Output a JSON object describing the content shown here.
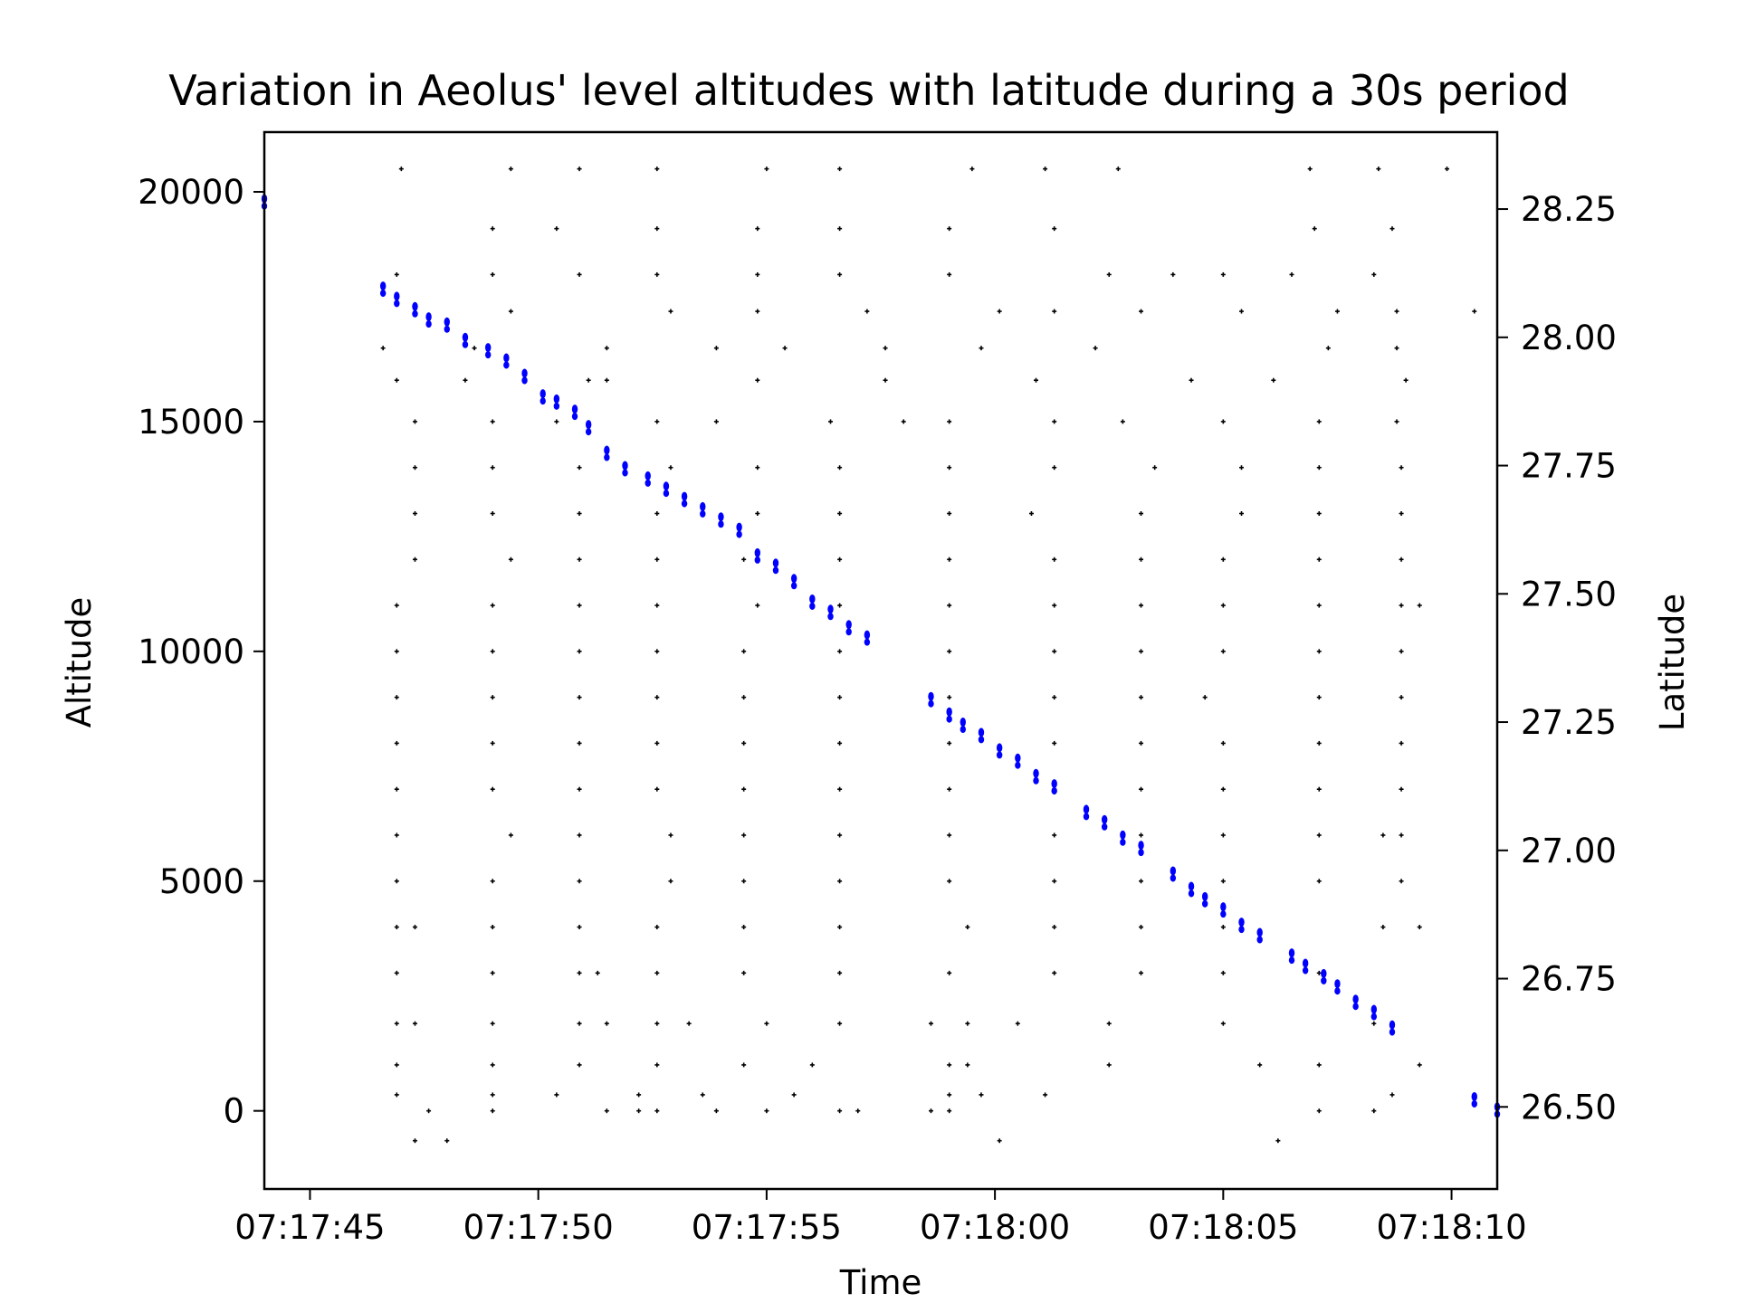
{
  "chart_data": {
    "type": "scatter",
    "title": "Variation in Aeolus' level altitudes with latitude during a 30s period",
    "xlabel": "Time",
    "ylabel": "Altitude",
    "y2label": "Latitude",
    "x_tick_labels": [
      "07:17:45",
      "07:17:50",
      "07:17:55",
      "07:18:00",
      "07:18:05",
      "07:18:10"
    ],
    "x_tick_seconds": [
      0,
      5,
      10,
      15,
      20,
      25
    ],
    "x_range_seconds": [
      -1.0,
      26.0
    ],
    "y_ticks": [
      0,
      5000,
      10000,
      15000,
      20000
    ],
    "ylim": [
      -1700,
      21300
    ],
    "y2_ticks": [
      26.5,
      26.75,
      27.0,
      27.25,
      27.5,
      27.75,
      28.0,
      28.25
    ],
    "y2_tick_labels": [
      "26.50",
      "26.75",
      "27.00",
      "27.25",
      "27.50",
      "27.75",
      "28.00",
      "28.25"
    ],
    "y2lim": [
      26.34,
      28.4
    ],
    "series": [
      {
        "color": "#0000ff",
        "axis": "latitude",
        "x_seconds": [
          -1.0,
          1.6,
          1.9,
          2.3,
          2.6,
          3.0,
          3.4,
          3.9,
          4.3,
          4.7,
          5.1,
          5.4,
          5.8,
          6.1,
          6.5,
          6.9,
          7.4,
          7.8,
          8.2,
          8.6,
          9.0,
          9.4,
          9.8,
          10.2,
          10.6,
          11.0,
          11.4,
          11.8,
          12.2,
          13.6,
          14.0,
          14.3,
          14.7,
          15.1,
          15.5,
          15.9,
          16.3,
          17.0,
          17.4,
          17.8,
          18.2,
          18.9,
          19.3,
          19.6,
          20.0,
          20.4,
          20.8,
          21.5,
          21.8,
          22.2,
          22.5,
          22.9,
          23.3,
          23.7,
          25.5,
          26.0
        ],
        "y_latitude": [
          28.27,
          28.1,
          28.08,
          28.06,
          28.04,
          28.03,
          28.0,
          27.98,
          27.96,
          27.93,
          27.89,
          27.88,
          27.86,
          27.83,
          27.78,
          27.75,
          27.73,
          27.71,
          27.69,
          27.67,
          27.65,
          27.63,
          27.58,
          27.56,
          27.53,
          27.49,
          27.47,
          27.44,
          27.42,
          27.3,
          27.27,
          27.25,
          27.23,
          27.2,
          27.18,
          27.15,
          27.13,
          27.08,
          27.06,
          27.03,
          27.01,
          26.96,
          26.93,
          26.91,
          26.89,
          26.86,
          26.84,
          26.8,
          26.78,
          26.76,
          26.74,
          26.71,
          26.69,
          26.66,
          26.52,
          26.5
        ]
      },
      {
        "color": "#000000",
        "axis": "altitude",
        "note_style": "small crosses",
        "points": [
          [
            2.0,
            20500
          ],
          [
            4.4,
            20500
          ],
          [
            5.9,
            20500
          ],
          [
            7.6,
            20500
          ],
          [
            10.0,
            20500
          ],
          [
            11.6,
            20500
          ],
          [
            14.5,
            20500
          ],
          [
            16.1,
            20500
          ],
          [
            21.9,
            20500
          ],
          [
            23.4,
            20500
          ],
          [
            24.9,
            20500
          ],
          [
            17.7,
            20500
          ],
          [
            4.0,
            19200
          ],
          [
            5.4,
            19200
          ],
          [
            7.6,
            19200
          ],
          [
            9.8,
            19200
          ],
          [
            11.6,
            19200
          ],
          [
            14.0,
            19200
          ],
          [
            16.3,
            19200
          ],
          [
            22.0,
            19200
          ],
          [
            23.7,
            19200
          ],
          [
            1.9,
            18200
          ],
          [
            4.0,
            18200
          ],
          [
            5.9,
            18200
          ],
          [
            7.6,
            18200
          ],
          [
            9.8,
            18200
          ],
          [
            11.6,
            18200
          ],
          [
            14.0,
            18200
          ],
          [
            17.5,
            18200
          ],
          [
            18.9,
            18200
          ],
          [
            20.0,
            18200
          ],
          [
            21.5,
            18200
          ],
          [
            23.3,
            18200
          ],
          [
            4.4,
            17400
          ],
          [
            7.9,
            17400
          ],
          [
            9.8,
            17400
          ],
          [
            12.2,
            17400
          ],
          [
            15.1,
            17400
          ],
          [
            16.3,
            17400
          ],
          [
            18.2,
            17400
          ],
          [
            20.4,
            17400
          ],
          [
            22.5,
            17400
          ],
          [
            23.8,
            17400
          ],
          [
            25.5,
            17400
          ],
          [
            1.6,
            16600
          ],
          [
            3.6,
            16600
          ],
          [
            6.5,
            16600
          ],
          [
            8.9,
            16600
          ],
          [
            10.4,
            16600
          ],
          [
            12.6,
            16600
          ],
          [
            14.7,
            16600
          ],
          [
            17.2,
            16600
          ],
          [
            22.3,
            16600
          ],
          [
            23.8,
            16600
          ],
          [
            1.9,
            15900
          ],
          [
            3.4,
            15900
          ],
          [
            6.1,
            15900
          ],
          [
            6.5,
            15900
          ],
          [
            9.8,
            15900
          ],
          [
            12.6,
            15900
          ],
          [
            15.9,
            15900
          ],
          [
            19.3,
            15900
          ],
          [
            21.1,
            15900
          ],
          [
            24.0,
            15900
          ],
          [
            2.3,
            15000
          ],
          [
            4.0,
            15000
          ],
          [
            5.4,
            15000
          ],
          [
            7.6,
            15000
          ],
          [
            8.9,
            15000
          ],
          [
            11.4,
            15000
          ],
          [
            13.0,
            15000
          ],
          [
            14.0,
            15000
          ],
          [
            16.3,
            15000
          ],
          [
            17.8,
            15000
          ],
          [
            20.0,
            15000
          ],
          [
            22.1,
            15000
          ],
          [
            23.8,
            15000
          ],
          [
            2.3,
            14000
          ],
          [
            4.0,
            14000
          ],
          [
            5.9,
            14000
          ],
          [
            7.9,
            14000
          ],
          [
            9.8,
            14000
          ],
          [
            11.6,
            14000
          ],
          [
            14.0,
            14000
          ],
          [
            16.3,
            14000
          ],
          [
            18.5,
            14000
          ],
          [
            20.4,
            14000
          ],
          [
            22.1,
            14000
          ],
          [
            23.9,
            14000
          ],
          [
            2.3,
            13000
          ],
          [
            4.0,
            13000
          ],
          [
            5.9,
            13000
          ],
          [
            7.6,
            13000
          ],
          [
            9.8,
            13000
          ],
          [
            11.6,
            13000
          ],
          [
            14.0,
            13000
          ],
          [
            15.8,
            13000
          ],
          [
            18.2,
            13000
          ],
          [
            20.4,
            13000
          ],
          [
            22.1,
            13000
          ],
          [
            23.9,
            13000
          ],
          [
            2.3,
            12000
          ],
          [
            4.4,
            12000
          ],
          [
            5.9,
            12000
          ],
          [
            7.6,
            12000
          ],
          [
            9.5,
            12000
          ],
          [
            11.6,
            12000
          ],
          [
            14.0,
            12000
          ],
          [
            16.3,
            12000
          ],
          [
            18.2,
            12000
          ],
          [
            20.0,
            12000
          ],
          [
            22.1,
            12000
          ],
          [
            23.9,
            12000
          ],
          [
            1.9,
            11000
          ],
          [
            4.0,
            11000
          ],
          [
            5.9,
            11000
          ],
          [
            7.6,
            11000
          ],
          [
            9.8,
            11000
          ],
          [
            11.6,
            11000
          ],
          [
            14.0,
            11000
          ],
          [
            16.3,
            11000
          ],
          [
            18.2,
            11000
          ],
          [
            20.0,
            11000
          ],
          [
            22.1,
            11000
          ],
          [
            23.9,
            11000
          ],
          [
            24.3,
            11000
          ],
          [
            1.9,
            10000
          ],
          [
            4.0,
            10000
          ],
          [
            5.9,
            10000
          ],
          [
            7.6,
            10000
          ],
          [
            9.5,
            10000
          ],
          [
            11.6,
            10000
          ],
          [
            14.0,
            10000
          ],
          [
            16.3,
            10000
          ],
          [
            18.2,
            10000
          ],
          [
            20.0,
            10000
          ],
          [
            22.1,
            10000
          ],
          [
            23.9,
            10000
          ],
          [
            1.9,
            9000
          ],
          [
            4.0,
            9000
          ],
          [
            5.9,
            9000
          ],
          [
            7.6,
            9000
          ],
          [
            9.5,
            9000
          ],
          [
            11.6,
            9000
          ],
          [
            14.0,
            9000
          ],
          [
            16.3,
            9000
          ],
          [
            18.2,
            9000
          ],
          [
            19.6,
            9000
          ],
          [
            22.1,
            9000
          ],
          [
            23.9,
            9000
          ],
          [
            1.9,
            8000
          ],
          [
            4.0,
            8000
          ],
          [
            5.9,
            8000
          ],
          [
            7.6,
            8000
          ],
          [
            9.5,
            8000
          ],
          [
            11.6,
            8000
          ],
          [
            14.0,
            8000
          ],
          [
            16.3,
            8000
          ],
          [
            18.2,
            8000
          ],
          [
            20.0,
            8000
          ],
          [
            22.1,
            8000
          ],
          [
            23.9,
            8000
          ],
          [
            1.9,
            7000
          ],
          [
            4.0,
            7000
          ],
          [
            5.9,
            7000
          ],
          [
            7.6,
            7000
          ],
          [
            9.5,
            7000
          ],
          [
            11.6,
            7000
          ],
          [
            14.0,
            7000
          ],
          [
            16.3,
            7000
          ],
          [
            18.2,
            7000
          ],
          [
            20.0,
            7000
          ],
          [
            22.1,
            7000
          ],
          [
            23.9,
            7000
          ],
          [
            1.9,
            6000
          ],
          [
            4.4,
            6000
          ],
          [
            5.9,
            6000
          ],
          [
            7.9,
            6000
          ],
          [
            9.5,
            6000
          ],
          [
            11.6,
            6000
          ],
          [
            14.0,
            6000
          ],
          [
            16.3,
            6000
          ],
          [
            18.2,
            6000
          ],
          [
            20.0,
            6000
          ],
          [
            22.1,
            6000
          ],
          [
            23.5,
            6000
          ],
          [
            23.9,
            6000
          ],
          [
            1.9,
            5000
          ],
          [
            4.0,
            5000
          ],
          [
            5.9,
            5000
          ],
          [
            7.9,
            5000
          ],
          [
            9.5,
            5000
          ],
          [
            11.6,
            5000
          ],
          [
            14.0,
            5000
          ],
          [
            16.3,
            5000
          ],
          [
            18.2,
            5000
          ],
          [
            20.0,
            5000
          ],
          [
            22.1,
            5000
          ],
          [
            23.9,
            5000
          ],
          [
            1.9,
            4000
          ],
          [
            2.3,
            4000
          ],
          [
            4.0,
            4000
          ],
          [
            5.9,
            4000
          ],
          [
            7.6,
            4000
          ],
          [
            9.5,
            4000
          ],
          [
            11.6,
            4000
          ],
          [
            14.4,
            4000
          ],
          [
            16.3,
            4000
          ],
          [
            18.2,
            4000
          ],
          [
            20.0,
            4000
          ],
          [
            23.5,
            4000
          ],
          [
            24.3,
            4000
          ],
          [
            1.9,
            3000
          ],
          [
            4.0,
            3000
          ],
          [
            5.9,
            3000
          ],
          [
            6.3,
            3000
          ],
          [
            7.6,
            3000
          ],
          [
            9.5,
            3000
          ],
          [
            11.6,
            3000
          ],
          [
            14.0,
            3000
          ],
          [
            16.3,
            3000
          ],
          [
            18.2,
            3000
          ],
          [
            20.0,
            3000
          ],
          [
            22.1,
            3000
          ],
          [
            1.9,
            1900
          ],
          [
            2.3,
            1900
          ],
          [
            4.0,
            1900
          ],
          [
            5.9,
            1900
          ],
          [
            6.5,
            1900
          ],
          [
            7.6,
            1900
          ],
          [
            8.3,
            1900
          ],
          [
            10.0,
            1900
          ],
          [
            11.6,
            1900
          ],
          [
            13.6,
            1900
          ],
          [
            14.4,
            1900
          ],
          [
            15.5,
            1900
          ],
          [
            17.5,
            1900
          ],
          [
            20.0,
            1900
          ],
          [
            23.3,
            1900
          ],
          [
            1.9,
            1000
          ],
          [
            4.0,
            1000
          ],
          [
            5.9,
            1000
          ],
          [
            7.6,
            1000
          ],
          [
            9.5,
            1000
          ],
          [
            11.0,
            1000
          ],
          [
            14.0,
            1000
          ],
          [
            14.4,
            1000
          ],
          [
            17.5,
            1000
          ],
          [
            20.8,
            1000
          ],
          [
            22.1,
            1000
          ],
          [
            24.3,
            1000
          ],
          [
            1.9,
            350
          ],
          [
            4.0,
            350
          ],
          [
            5.4,
            350
          ],
          [
            7.2,
            350
          ],
          [
            8.6,
            350
          ],
          [
            10.6,
            350
          ],
          [
            14.0,
            350
          ],
          [
            14.7,
            350
          ],
          [
            16.1,
            350
          ],
          [
            23.7,
            350
          ],
          [
            2.6,
            0
          ],
          [
            4.0,
            0
          ],
          [
            6.5,
            0
          ],
          [
            7.2,
            0
          ],
          [
            7.6,
            0
          ],
          [
            8.9,
            0
          ],
          [
            10.0,
            0
          ],
          [
            11.6,
            0
          ],
          [
            12.0,
            0
          ],
          [
            13.6,
            0
          ],
          [
            14.0,
            0
          ],
          [
            22.1,
            0
          ],
          [
            23.3,
            0
          ],
          [
            2.3,
            -650
          ],
          [
            3.0,
            -650
          ],
          [
            15.1,
            -650
          ],
          [
            21.2,
            -650
          ]
        ]
      }
    ],
    "grid": false
  }
}
